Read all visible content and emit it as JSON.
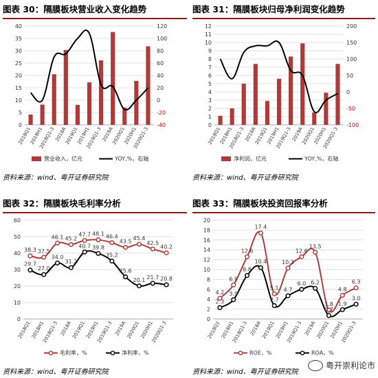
{
  "charts": [
    {
      "title": "图表 30：隔膜板块营业收入变化趋势",
      "source": "资料来源：wind、粤开证券研究院",
      "chart_data": {
        "type": "bar",
        "categories": [
          "2018Q1",
          "2018H1",
          "2018Q1-3",
          "2018A",
          "2019Q1",
          "2019H1",
          "2019Q1-3",
          "2019A",
          "2020Q1",
          "2020H1",
          "2020Q1-3"
        ],
        "series": [
          {
            "name": "营业收入，亿元",
            "type": "bar",
            "axis": "left",
            "values": [
              4.2,
              8.2,
              20.5,
              30.3,
              8.1,
              17.2,
              26.1,
              37.6,
              7.0,
              17.8,
              31.8
            ]
          },
          {
            "name": "YOY,%，右轴",
            "type": "line",
            "axis": "right",
            "values": [
              12,
              0,
              70,
              75,
              100,
              108,
              25,
              22,
              -15,
              0,
              20
            ]
          }
        ],
        "ylim": [
          0,
          40
        ],
        "yticks": [
          "0",
          "5",
          "10",
          "15",
          "20",
          "25",
          "30",
          "35",
          "40"
        ],
        "y2lim": [
          -40,
          120
        ],
        "y2ticks": [
          "-40",
          "-20",
          "0",
          "20",
          "40",
          "60",
          "80",
          "100",
          "120"
        ],
        "bar_color": "#b03a3a",
        "line_color": "#000000"
      }
    },
    {
      "title": "图表 31：隔膜板块归母净利润变化趋势",
      "source": "资料来源：wind、粤开证券研究院",
      "chart_data": {
        "type": "bar",
        "categories": [
          "2018Q1",
          "2018H1",
          "2018Q1-3",
          "2018A",
          "2019Q1",
          "2019H1",
          "2019Q1-3",
          "2019A",
          "2020Q1",
          "2020H1",
          "2020Q1-3"
        ],
        "series": [
          {
            "name": "净利润，亿元",
            "type": "bar",
            "axis": "left",
            "values": [
              1.1,
              2.0,
              5.0,
              7.4,
              2.9,
              5.6,
              8.3,
              9.9,
              1.5,
              3.9,
              7.4
            ]
          },
          {
            "name": "YOY,%，右轴",
            "type": "line",
            "axis": "right",
            "values": [
              100,
              40,
              120,
              140,
              140,
              150,
              65,
              50,
              -60,
              -25,
              -5
            ]
          }
        ],
        "ylim": [
          0,
          12
        ],
        "yticks": [
          "0",
          "1",
          "2",
          "3",
          "4",
          "5",
          "6",
          "7",
          "8",
          "9",
          "10",
          "11",
          "12"
        ],
        "y2lim": [
          -100,
          200
        ],
        "y2ticks": [
          "-100",
          "-50",
          "0",
          "50",
          "100",
          "150",
          "200"
        ],
        "bar_color": "#b03a3a",
        "line_color": "#000000"
      }
    },
    {
      "title": "图表 32：隔膜板块毛利率分析",
      "source": "资料来源：wind、粤开证券研究院",
      "chart_data": {
        "type": "line",
        "categories": [
          "2018Q1",
          "2018H1",
          "2018Q1-3",
          "2018A",
          "2019Q1",
          "2019H1",
          "2019Q1-3",
          "2019A",
          "2020Q1",
          "2020H1",
          "2020Q1-3"
        ],
        "series": [
          {
            "name": "毛利率，%",
            "color": "#b03a3a",
            "values": [
              38.3,
              37.5,
              46.1,
              45.2,
              47.7,
              48.1,
              46.4,
              43.5,
              45.4,
              42.5,
              40.2
            ],
            "labels": [
              "38.3",
              "37.5",
              "46.1",
              "45.2",
              "47.7",
              "48.1",
              "46.4",
              "43.5",
              "45.4",
              "42.5",
              "40.2"
            ]
          },
          {
            "name": "净利率，%",
            "color": "#000000",
            "values": [
              29.7,
              27.0,
              34.0,
              31.2,
              40.7,
              39.8,
              35.2,
              25.6,
              20.1,
              21.7,
              20.8
            ],
            "labels": [
              "29.7",
              "27.0",
              "34.0",
              "31.2",
              "40.7",
              "39.8",
              "35.2",
              "25.6",
              "20.1",
              "21.7",
              "20.8"
            ]
          }
        ],
        "ylim": [
          0,
          60
        ],
        "yticks": [
          "0",
          "10",
          "20",
          "30",
          "40",
          "50",
          "60"
        ]
      }
    },
    {
      "title": "图表 33：隔膜板块投资回报率分析",
      "source": "资料来源：wind、粤开证券研究院",
      "chart_data": {
        "type": "line",
        "categories": [
          "2018Q1",
          "2018H1",
          "2018Q1-3",
          "2018A",
          "2019Q1",
          "2019H1",
          "2019Q1-3",
          "2019A",
          "2020Q1",
          "2020H1",
          "2020Q1-3"
        ],
        "series": [
          {
            "name": "ROE，%",
            "color": "#b03a3a",
            "values": [
              4.2,
              6.9,
              12.6,
              17.4,
              5.1,
              10.3,
              12.6,
              13.5,
              1.8,
              4.8,
              6.3
            ],
            "labels": [
              "4.2",
              "6.9",
              "12.6",
              "17.4",
              "5.1",
              "10.3",
              "12.6",
              "13.5",
              "1.8",
              "4.8",
              "6.3"
            ]
          },
          {
            "name": "ROA，%",
            "color": "#000000",
            "values": [
              2.3,
              3.9,
              8.8,
              10.4,
              2.7,
              4.7,
              6.0,
              6.2,
              0.7,
              1.9,
              3.0
            ],
            "labels": [
              "2.3",
              "3.9",
              "8.8",
              "10.4",
              "2.7",
              "4.7",
              "6.0",
              "6.2",
              "0.7",
              "1.9",
              "3.0"
            ]
          }
        ],
        "ylim": [
          0,
          20
        ],
        "yticks": [
          "0",
          "2",
          "4",
          "6",
          "8",
          "10",
          "12",
          "14",
          "16",
          "18",
          "20"
        ]
      }
    }
  ],
  "watermark": "粤开崇利论市"
}
